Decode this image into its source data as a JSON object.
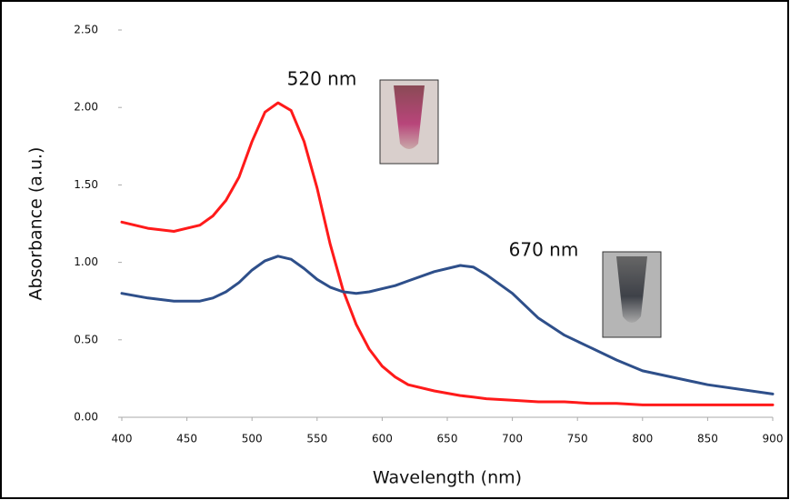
{
  "chart_data": {
    "type": "line",
    "x_label": "Wavelength (nm)",
    "y_label": "Absorbance (a.u.)",
    "annotations": [
      "520 nm",
      "670 nm"
    ],
    "x": [
      400,
      420,
      440,
      460,
      470,
      480,
      490,
      500,
      510,
      520,
      530,
      540,
      550,
      560,
      570,
      580,
      590,
      600,
      610,
      620,
      640,
      660,
      670,
      680,
      700,
      720,
      740,
      760,
      780,
      800,
      850,
      900
    ],
    "series": [
      {
        "color": "#ff1a1a",
        "values": [
          1.26,
          1.22,
          1.2,
          1.24,
          1.3,
          1.4,
          1.55,
          1.78,
          1.97,
          2.03,
          1.98,
          1.78,
          1.48,
          1.12,
          0.82,
          0.6,
          0.44,
          0.33,
          0.26,
          0.21,
          0.17,
          0.14,
          0.13,
          0.12,
          0.11,
          0.1,
          0.1,
          0.09,
          0.09,
          0.08,
          0.08,
          0.08
        ]
      },
      {
        "color": "#2e4f8a",
        "values": [
          0.8,
          0.77,
          0.75,
          0.75,
          0.77,
          0.81,
          0.87,
          0.95,
          1.01,
          1.04,
          1.02,
          0.96,
          0.89,
          0.84,
          0.81,
          0.8,
          0.81,
          0.83,
          0.85,
          0.88,
          0.94,
          0.98,
          0.97,
          0.92,
          0.8,
          0.64,
          0.53,
          0.45,
          0.37,
          0.3,
          0.21,
          0.15
        ]
      }
    ],
    "xlim": [
      400,
      900
    ],
    "xticks": [
      400,
      450,
      500,
      550,
      600,
      650,
      700,
      750,
      800,
      850,
      900
    ],
    "ylim": [
      0,
      2.5
    ],
    "yticks": [
      {
        "value": 0,
        "label": "0.00"
      },
      {
        "value": 0.5,
        "label": "0.50"
      },
      {
        "value": 1,
        "label": "1.00"
      },
      {
        "value": 1.5,
        "label": "1.50"
      },
      {
        "value": 2,
        "label": "2.00"
      },
      {
        "value": 2.5,
        "label": "2.50"
      }
    ]
  }
}
